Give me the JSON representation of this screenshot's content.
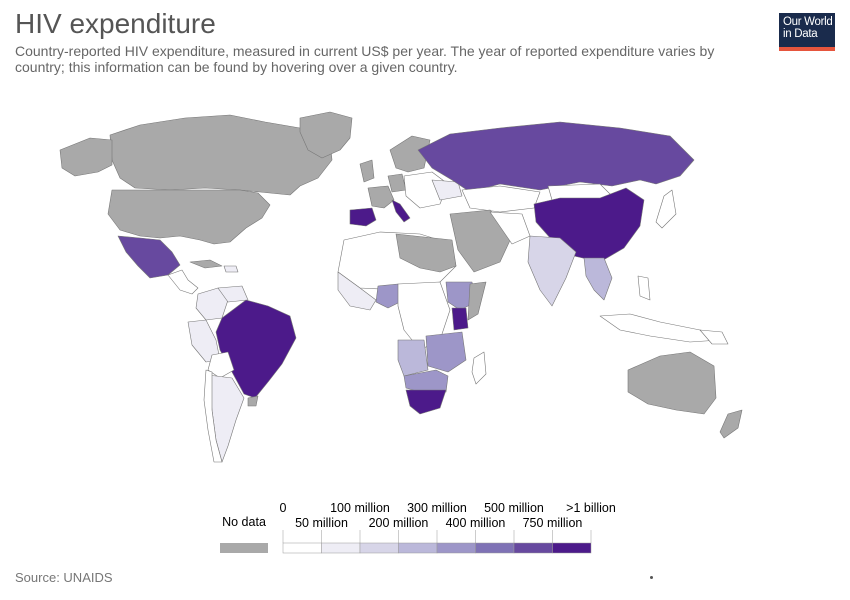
{
  "title": "HIV expenditure",
  "subtitle": "Country-reported HIV expenditure, measured in current US$ per year. The year of reported expenditure varies by country; this information can be found by hovering over a given country.",
  "logo": {
    "line1": "Our World",
    "line2": "in Data"
  },
  "source": "Source: UNAIDS",
  "legend": {
    "no_data_label": "No data",
    "no_data_color": "#a9a9a9",
    "top_labels": [
      "0",
      "100 million",
      "300 million",
      "500 million",
      ">1 billion"
    ],
    "bottom_labels": [
      "50 million",
      "200 million",
      "400 million",
      "750 million"
    ],
    "bins": [
      {
        "color": "#ffffff"
      },
      {
        "color": "#eeedf5"
      },
      {
        "color": "#d7d5e8"
      },
      {
        "color": "#bbb8da"
      },
      {
        "color": "#9d96c8"
      },
      {
        "color": "#7f72b5"
      },
      {
        "color": "#67499f"
      },
      {
        "color": "#4c1a8a"
      }
    ]
  },
  "colors": {
    "no_data": "#a9a9a9",
    "low": "#ffffff",
    "very_light": "#eeedf5",
    "light": "#d7d5e8",
    "mid_light": "#bbb8da",
    "mid": "#9d96c8",
    "mid_dark": "#7f72b5",
    "dark": "#67499f",
    "darkest": "#4c1a8a"
  }
}
